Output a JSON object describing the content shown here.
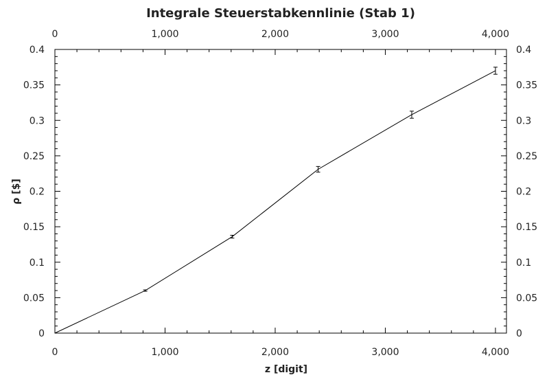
{
  "chart_data": {
    "type": "line",
    "title": "Integrale Steuerstabkennlinie (Stab 1)",
    "xlabel": "z [digit]",
    "ylabel": "ρ [$]",
    "xlim": [
      0,
      4100
    ],
    "ylim": [
      0,
      0.4
    ],
    "x_ticks": [
      {
        "value": 0,
        "label": "0"
      },
      {
        "value": 1000,
        "label": "1,000"
      },
      {
        "value": 2000,
        "label": "2,000"
      },
      {
        "value": 3000,
        "label": "3,000"
      },
      {
        "value": 4000,
        "label": "4,000"
      }
    ],
    "y_ticks": [
      {
        "value": 0,
        "label": "0"
      },
      {
        "value": 0.05,
        "label": "0.05"
      },
      {
        "value": 0.1,
        "label": "0.1"
      },
      {
        "value": 0.15,
        "label": "0.15"
      },
      {
        "value": 0.2,
        "label": "0.2"
      },
      {
        "value": 0.25,
        "label": "0.25"
      },
      {
        "value": 0.3,
        "label": "0.3"
      },
      {
        "value": 0.35,
        "label": "0.35"
      },
      {
        "value": 0.4,
        "label": "0.4"
      }
    ],
    "mirror_axes": true,
    "grid": false,
    "series": [
      {
        "x": [
          0,
          820,
          1610,
          2390,
          3240,
          4000
        ],
        "y": [
          0,
          0.06,
          0.136,
          0.231,
          0.308,
          0.37
        ],
        "yerr": [
          0,
          0.001,
          0.002,
          0.004,
          0.005,
          0.005
        ]
      }
    ]
  }
}
